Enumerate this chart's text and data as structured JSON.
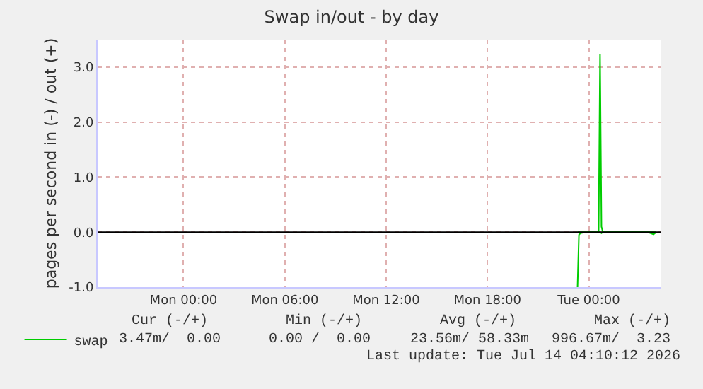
{
  "chart_data": {
    "type": "line",
    "title": "Swap in/out - by day",
    "ylabel": "pages per second in (-) / out (+)",
    "xlim": [
      "2026-07-12T18:55",
      "2026-07-14T04:15"
    ],
    "xticks": [
      {
        "value": "2026-07-13T00:00",
        "label": "Mon 00:00"
      },
      {
        "value": "2026-07-13T06:00",
        "label": "Mon 06:00"
      },
      {
        "value": "2026-07-13T12:00",
        "label": "Mon 12:00"
      },
      {
        "value": "2026-07-13T18:00",
        "label": "Mon 18:00"
      },
      {
        "value": "2026-07-14T00:00",
        "label": "Tue 00:00"
      }
    ],
    "ylim": [
      -1,
      3.5
    ],
    "yticks": [
      {
        "value": -1,
        "label": "-1.0"
      },
      {
        "value": 0,
        "label": "0.0"
      },
      {
        "value": 1,
        "label": "1.0"
      },
      {
        "value": 2,
        "label": "2.0"
      },
      {
        "value": 3,
        "label": "3.0"
      }
    ],
    "x": [
      "2026-07-13T23:20",
      "2026-07-13T23:25",
      "2026-07-13T23:30",
      "2026-07-13T23:40",
      "2026-07-13T23:50",
      "2026-07-14T00:00",
      "2026-07-14T00:10",
      "2026-07-14T00:20",
      "2026-07-14T00:30",
      "2026-07-14T00:35",
      "2026-07-14T00:40",
      "2026-07-14T00:45",
      "2026-07-14T00:50",
      "2026-07-14T01:00",
      "2026-07-14T01:30",
      "2026-07-14T02:00",
      "2026-07-14T02:30",
      "2026-07-14T03:00",
      "2026-07-14T03:30",
      "2026-07-14T03:50",
      "2026-07-14T04:00"
    ],
    "series": [
      {
        "name": "swap",
        "color": "#00cc00",
        "values": [
          0,
          0,
          0,
          0,
          0,
          0,
          0,
          0,
          0,
          0,
          3.23,
          0.1,
          0,
          0,
          0,
          0,
          0,
          0,
          0,
          0,
          0
        ]
      },
      {
        "color": "#00cc00",
        "values": [
          -1,
          -0.05,
          -0.02,
          -0.01,
          -0.01,
          0,
          0,
          0,
          0,
          0,
          0,
          -0.02,
          0,
          0,
          0,
          0,
          0,
          0,
          0,
          -0.04,
          0
        ]
      }
    ],
    "ref_lines": [
      {
        "axis": "y",
        "value": 0,
        "color": "#000000"
      }
    ],
    "grid": true,
    "legend": "bottom left",
    "marker": "none",
    "line_style": "solid",
    "annotations": [
      "Cur (-/+)",
      "Min (-/+)",
      "Avg (-/+)",
      "Max (-/+)",
      "3.47m/  0.00",
      "0.00 /  0.00",
      "23.56m/ 58.33m",
      "996.67m/  3.23",
      "Last update: Tue Jul 14 04:10:12 2026"
    ]
  }
}
